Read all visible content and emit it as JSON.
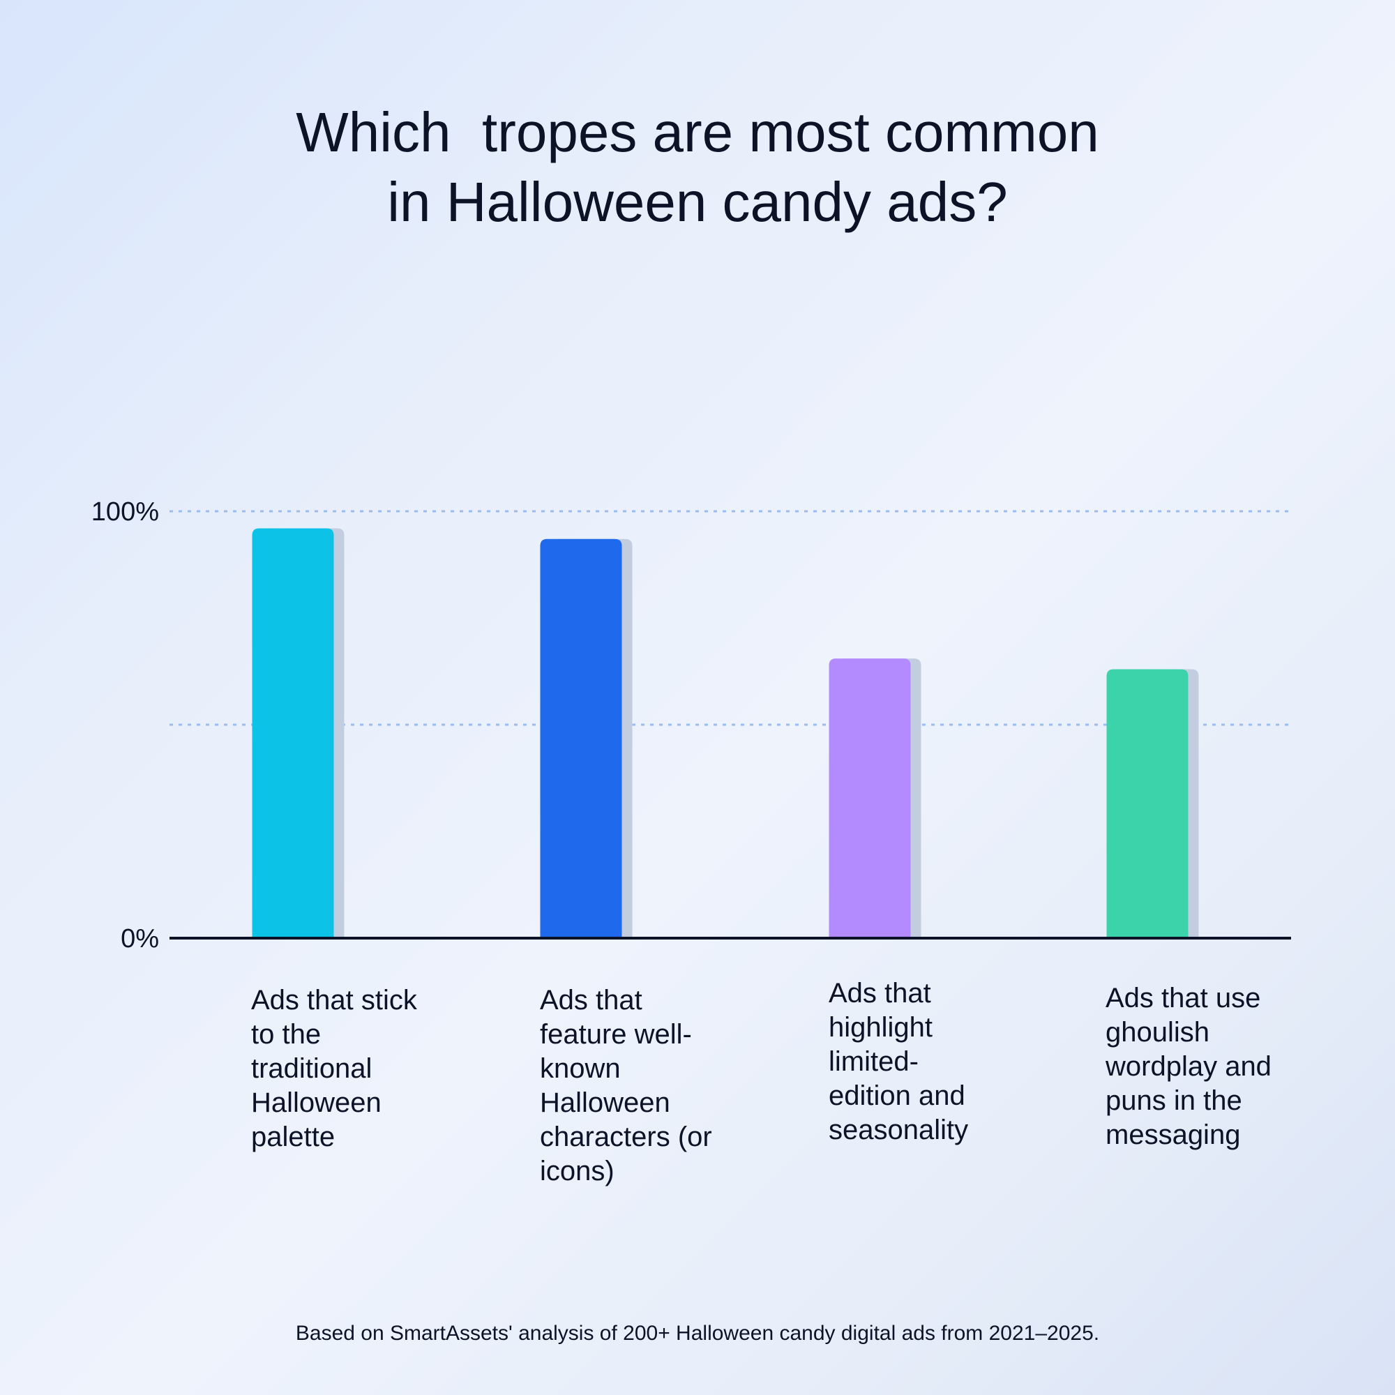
{
  "title": {
    "line1": "Which  tropes are most common",
    "line2": "in Halloween candy ads?"
  },
  "footnote": "Based on SmartAssets' analysis of 200+ Halloween candy digital ads from 2021–2025.",
  "chart_data": {
    "type": "bar",
    "title": "Which  tropes are most common in Halloween candy ads?",
    "categories": [
      "Ads that stick to the traditional Halloween palette",
      "Ads that feature well-known Halloween characters (or icons)",
      "Ads that highlight limited-edition and seasonality",
      "Ads that use ghoulish wordplay and puns in the messaging"
    ],
    "category_lines": [
      [
        "Ads that stick",
        "to the",
        "traditional",
        "Halloween",
        "palette"
      ],
      [
        "Ads that",
        "feature well-",
        "known",
        "Halloween",
        "characters (or",
        "icons)"
      ],
      [
        "Ads that",
        "highlight",
        "limited-",
        "edition and",
        "seasonality"
      ],
      [
        "Ads that use",
        "ghoulish",
        "wordplay and",
        "puns in the",
        "messaging"
      ]
    ],
    "values": [
      96,
      93.5,
      65.5,
      63
    ],
    "colors": [
      "#0cc3e7",
      "#1e69ec",
      "#b38bff",
      "#3cd3ab"
    ],
    "ylim": [
      0,
      100
    ],
    "y_ticks": [
      {
        "value": 100,
        "label": "100%"
      },
      {
        "value": 0,
        "label": "0%"
      }
    ],
    "gridlines": [
      100,
      50
    ],
    "xlabel": "",
    "ylabel": "",
    "grid": true
  }
}
